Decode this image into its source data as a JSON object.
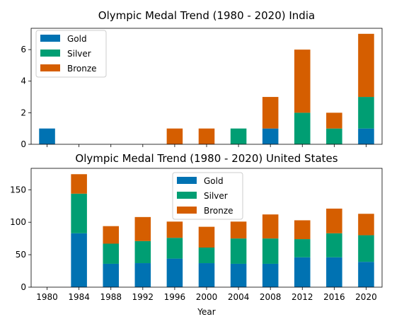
{
  "chart_data": [
    {
      "type": "bar",
      "stacked": true,
      "title": "Olympic Medal Trend (1980 - 2020) India",
      "xlabel": "",
      "ylabel": "",
      "categories": [
        "1980",
        "1984",
        "1988",
        "1992",
        "1996",
        "2000",
        "2004",
        "2008",
        "2012",
        "2016",
        "2020"
      ],
      "ylim": [
        0,
        7.35
      ],
      "yticks": [
        0,
        2,
        4,
        6
      ],
      "legend": "top-left",
      "series": [
        {
          "name": "Gold",
          "color": "#0072b2",
          "values": [
            1,
            0,
            0,
            0,
            0,
            0,
            0,
            1,
            0,
            0,
            1
          ]
        },
        {
          "name": "Silver",
          "color": "#009e73",
          "values": [
            0,
            0,
            0,
            0,
            0,
            0,
            1,
            0,
            2,
            1,
            2
          ]
        },
        {
          "name": "Bronze",
          "color": "#d55e00",
          "values": [
            0,
            0,
            0,
            0,
            1,
            1,
            0,
            2,
            4,
            1,
            4
          ]
        }
      ]
    },
    {
      "type": "bar",
      "stacked": true,
      "title": "Olympic Medal Trend (1980 - 2020) United States",
      "xlabel": "Year",
      "ylabel": "",
      "categories": [
        "1980",
        "1984",
        "1988",
        "1992",
        "1996",
        "2000",
        "2004",
        "2008",
        "2012",
        "2016",
        "2020"
      ],
      "ylim": [
        0,
        183
      ],
      "yticks": [
        0,
        50,
        100,
        150
      ],
      "legend": "top-center",
      "series": [
        {
          "name": "Gold",
          "color": "#0072b2",
          "values": [
            0,
            83,
            36,
            37,
            44,
            37,
            36,
            36,
            46,
            46,
            39
          ]
        },
        {
          "name": "Silver",
          "color": "#009e73",
          "values": [
            0,
            61,
            31,
            34,
            32,
            24,
            39,
            39,
            28,
            37,
            41
          ]
        },
        {
          "name": "Bronze",
          "color": "#d55e00",
          "values": [
            0,
            30,
            27,
            37,
            25,
            32,
            26,
            37,
            29,
            38,
            33
          ]
        }
      ]
    }
  ]
}
